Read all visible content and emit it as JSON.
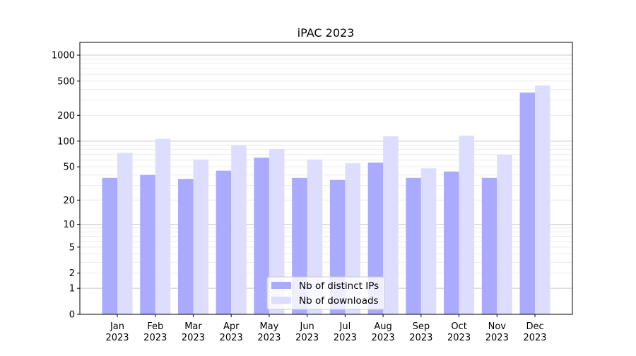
{
  "chart_data": {
    "type": "bar",
    "title": "iPAC 2023",
    "xlabel": "",
    "ylabel": "",
    "yscale": "symlog (log10(1+y))",
    "ylim": [
      0,
      1300
    ],
    "yticks": [
      0,
      1,
      2,
      5,
      10,
      20,
      50,
      100,
      200,
      500,
      1000
    ],
    "grid": true,
    "legend_position": "bottom-center",
    "categories": [
      [
        "Jan",
        "2023"
      ],
      [
        "Feb",
        "2023"
      ],
      [
        "Mar",
        "2023"
      ],
      [
        "Apr",
        "2023"
      ],
      [
        "May",
        "2023"
      ],
      [
        "Jun",
        "2023"
      ],
      [
        "Jul",
        "2023"
      ],
      [
        "Aug",
        "2023"
      ],
      [
        "Sep",
        "2023"
      ],
      [
        "Oct",
        "2023"
      ],
      [
        "Nov",
        "2023"
      ],
      [
        "Dec",
        "2023"
      ]
    ],
    "series": [
      {
        "name": "Nb of distinct IPs",
        "color": "#aaaaff",
        "values": [
          37,
          40,
          36,
          45,
          64,
          37,
          35,
          56,
          37,
          44,
          37,
          368
        ]
      },
      {
        "name": "Nb of downloads",
        "color": "#ddddff",
        "values": [
          73,
          106,
          61,
          89,
          81,
          61,
          55,
          114,
          48,
          116,
          69,
          445
        ]
      }
    ]
  }
}
